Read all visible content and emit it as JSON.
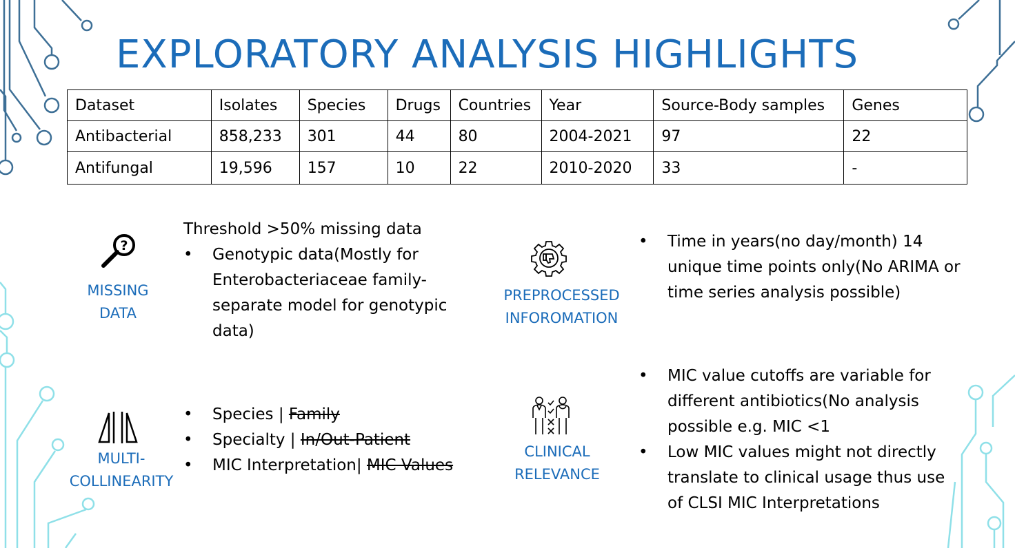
{
  "title": "EXPLORATORY ANALYSIS HIGHLIGHTS",
  "table": {
    "headers": [
      "Dataset",
      "Isolates",
      "Species",
      "Drugs",
      "Countries",
      "Year",
      "Source-Body samples",
      "Genes"
    ],
    "rows": [
      [
        "Antibacterial",
        "858,233",
        "301",
        "44",
        "80",
        "2004-2021",
        "97",
        "22"
      ],
      [
        "Antifungal",
        "19,596",
        "157",
        "10",
        "22",
        "2010-2020",
        "33",
        "-"
      ]
    ]
  },
  "missing": {
    "label_line1": "MISSING",
    "label_line2": "DATA",
    "icon": "magnifier-question-icon",
    "intro": "Threshold >50% missing data",
    "bullets": [
      "Genotypic data(Mostly for Enterobacteriaceae family-separate model for genotypic data)"
    ]
  },
  "preprocessed": {
    "label_line1": "PREPROCESSED",
    "label_line2": "INFOROMATION",
    "icon": "gear-thumbs-down-icon",
    "bullets": [
      "Time in years(no day/month) 14 unique time points only(No ARIMA or time series analysis possible)"
    ]
  },
  "multi": {
    "label_line1": "MULTI-",
    "label_line2": "COLLINEARITY",
    "icon": "mirror-triangles-icon",
    "items": [
      {
        "keep": "Species | ",
        "struck": "Family"
      },
      {
        "keep": "Specialty | ",
        "struck": "In/Out-Patient"
      },
      {
        "keep": "MIC Interpretation| ",
        "struck": "MIC Values"
      }
    ]
  },
  "clinical": {
    "label_line1": "CLINICAL",
    "label_line2": "RELEVANCE",
    "icon": "doctors-icon",
    "bullets": [
      "MIC value cutoffs are variable for different antibiotics(No analysis possible e.g. MIC <1",
      "Low MIC values might not directly translate to clinical usage thus use of CLSI MIC Interpretations"
    ]
  },
  "colors": {
    "accent": "#1b6cb9",
    "circuit_dark": "#2f5f86",
    "circuit_light": "#9fe6ec"
  }
}
